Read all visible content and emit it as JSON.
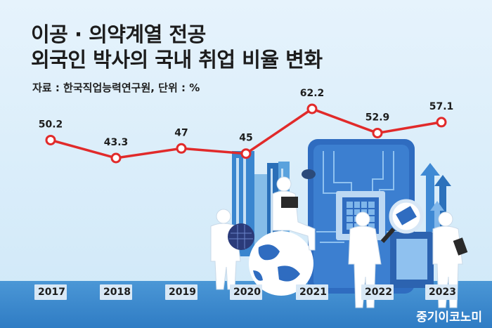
{
  "title_line1": "이공 · 의약계열 전공",
  "title_line2": "외국인 박사의 국내 취업 비율 변화",
  "source": "자료 : 한국직업능력연구원, 단위 : %",
  "brand": "중기이코노미",
  "colors": {
    "line": "#e12a2a",
    "background": "#e6f3fc",
    "floor": "#3d8ad0"
  },
  "chart_data": {
    "type": "line",
    "categories": [
      "2017",
      "2018",
      "2019",
      "2020",
      "2021",
      "2022",
      "2023"
    ],
    "values": [
      50.2,
      43.3,
      47,
      45,
      62.2,
      52.9,
      57.1
    ],
    "value_labels": [
      "50.2",
      "43.3",
      "47",
      "45",
      "62.2",
      "52.9",
      "57.1"
    ],
    "unit": "%",
    "grid": false,
    "legend": "none"
  }
}
